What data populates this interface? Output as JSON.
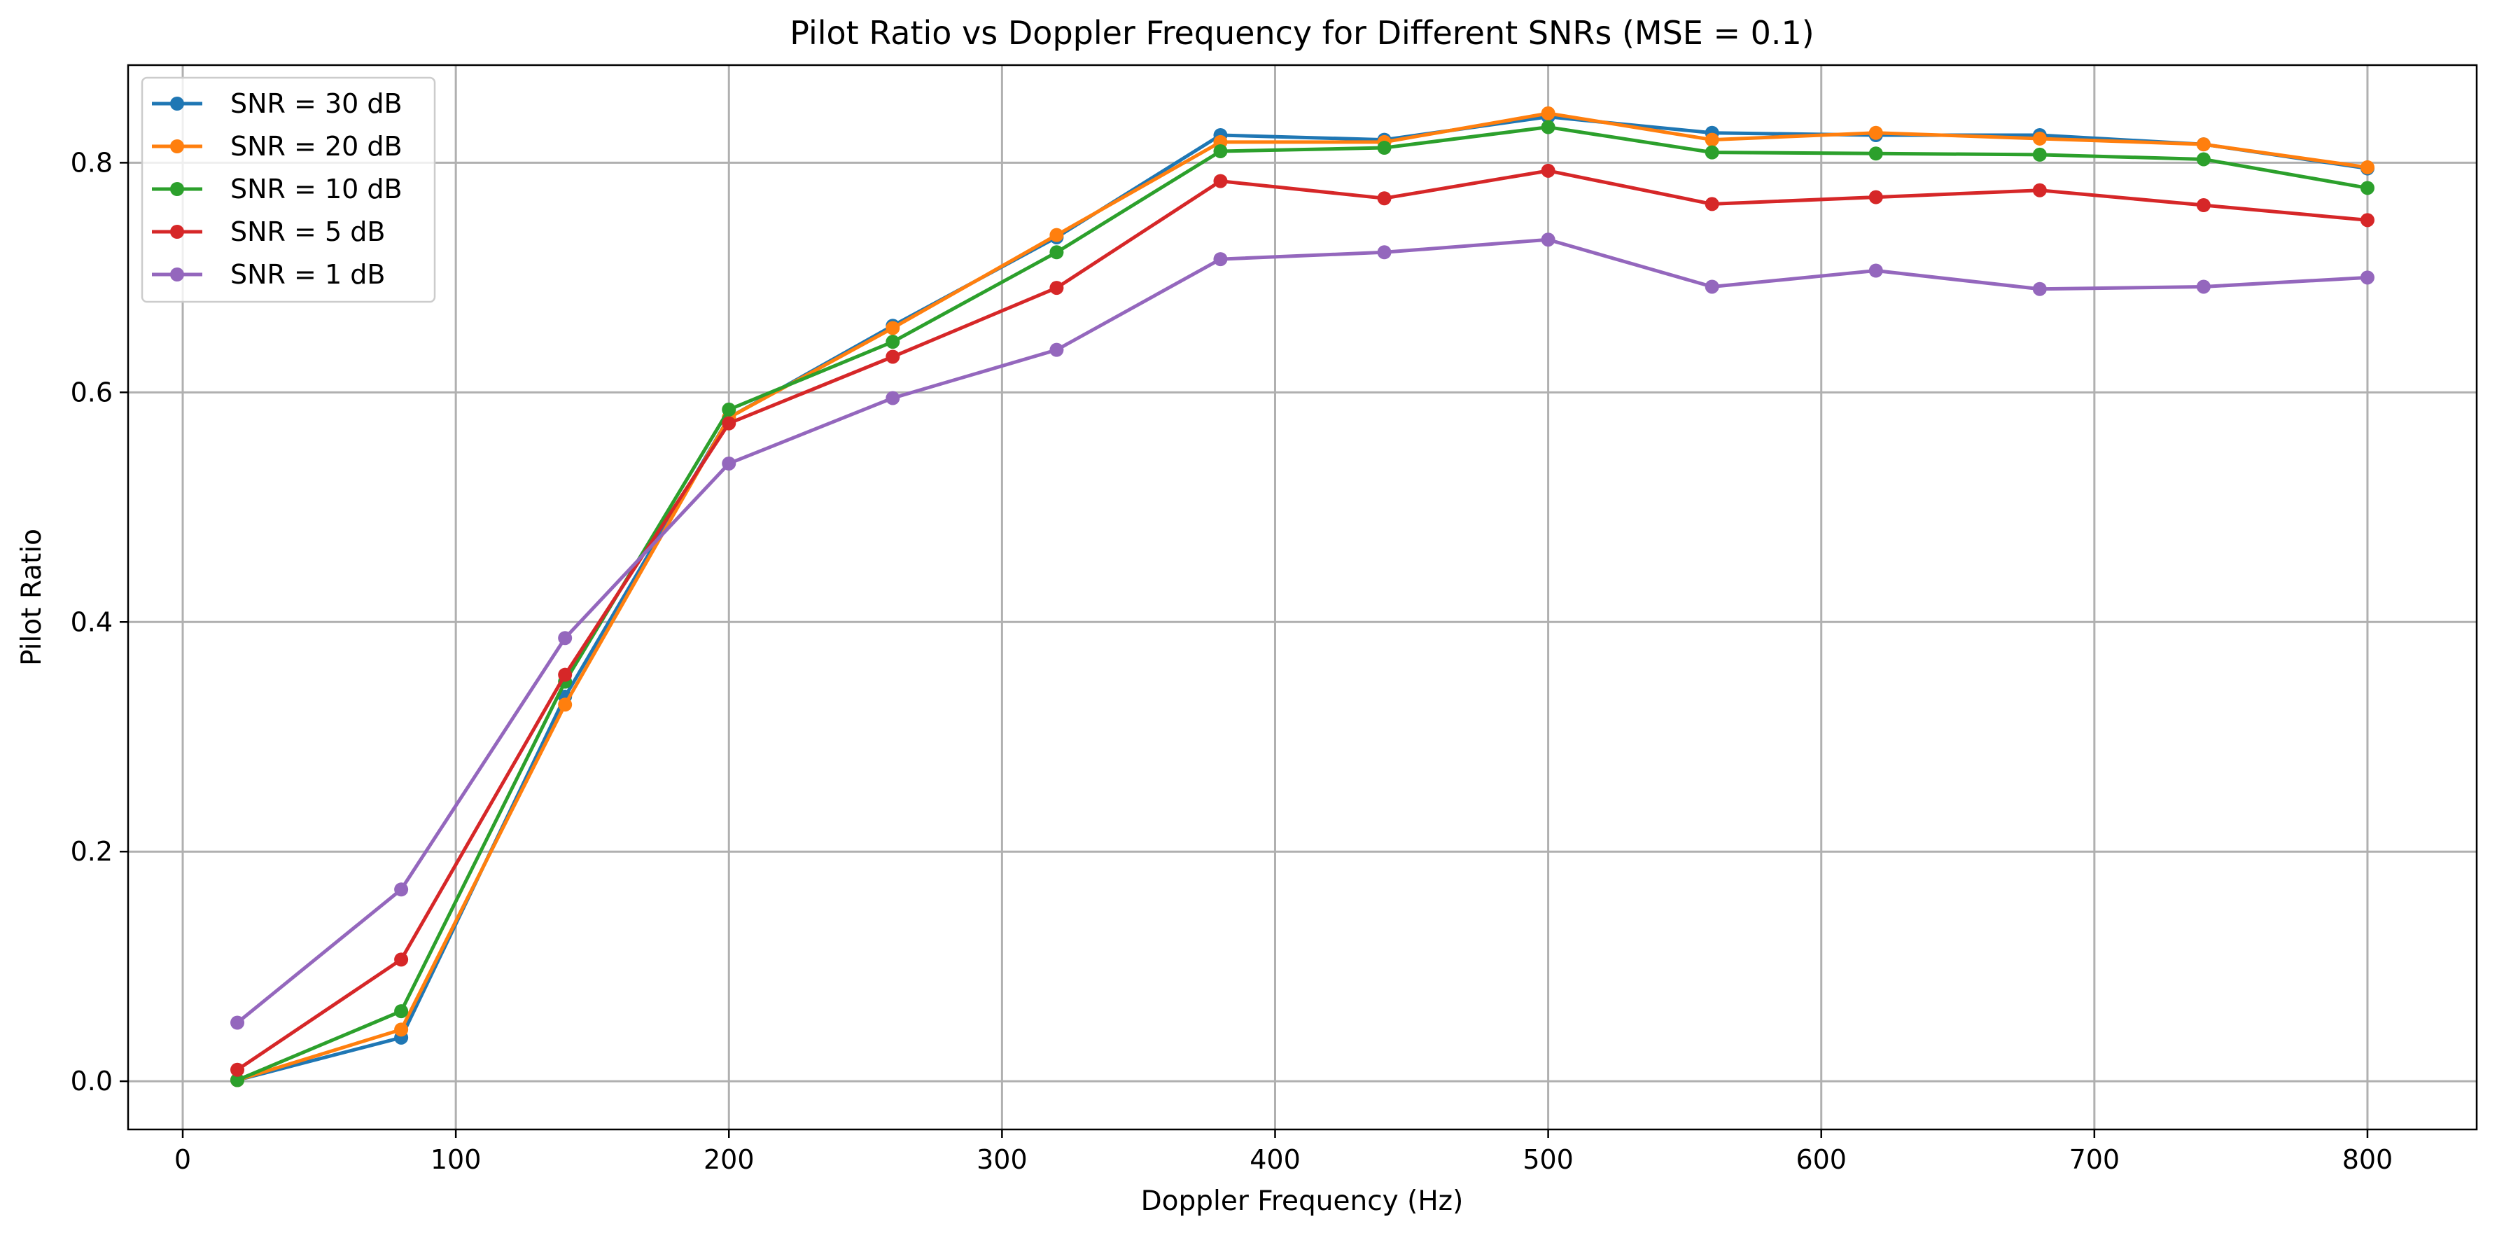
{
  "chart_data": {
    "type": "line",
    "title": "Pilot Ratio vs Doppler Frequency for Different SNRs (MSE = 0.1)",
    "xlabel": "Doppler Frequency (Hz)",
    "ylabel": "Pilot Ratio",
    "xlim": [
      -20,
      840
    ],
    "ylim": [
      -0.042,
      0.885
    ],
    "xticks": [
      0,
      100,
      200,
      300,
      400,
      500,
      600,
      700,
      800
    ],
    "xtick_labels": [
      "0",
      "100",
      "200",
      "300",
      "400",
      "500",
      "600",
      "700",
      "800"
    ],
    "yticks": [
      0.0,
      0.2,
      0.4,
      0.6,
      0.8
    ],
    "ytick_labels": [
      "0.0",
      "0.2",
      "0.4",
      "0.6",
      "0.8"
    ],
    "grid": true,
    "legend_position": "upper-left",
    "x": [
      20,
      80,
      140,
      200,
      260,
      320,
      380,
      440,
      500,
      560,
      620,
      680,
      740,
      800
    ],
    "series": [
      {
        "name": "SNR = 30 dB",
        "color": "#1f77b4",
        "values": [
          0.001,
          0.038,
          0.335,
          0.578,
          0.658,
          0.735,
          0.824,
          0.82,
          0.84,
          0.826,
          0.824,
          0.824,
          0.816,
          0.795
        ]
      },
      {
        "name": "SNR = 20 dB",
        "color": "#ff7f0e",
        "values": [
          0.001,
          0.045,
          0.328,
          0.578,
          0.656,
          0.737,
          0.818,
          0.818,
          0.843,
          0.82,
          0.826,
          0.821,
          0.816,
          0.796
        ]
      },
      {
        "name": "SNR = 10 dB",
        "color": "#2ca02c",
        "values": [
          0.001,
          0.061,
          0.348,
          0.585,
          0.644,
          0.722,
          0.81,
          0.813,
          0.831,
          0.809,
          0.808,
          0.807,
          0.803,
          0.778
        ]
      },
      {
        "name": "SNR = 5 dB",
        "color": "#d62728",
        "values": [
          0.01,
          0.106,
          0.354,
          0.573,
          0.631,
          0.691,
          0.784,
          0.769,
          0.793,
          0.764,
          0.77,
          0.776,
          0.763,
          0.75
        ]
      },
      {
        "name": "SNR = 1 dB",
        "color": "#9467bd",
        "values": [
          0.051,
          0.167,
          0.386,
          0.538,
          0.595,
          0.637,
          0.716,
          0.722,
          0.733,
          0.692,
          0.706,
          0.69,
          0.692,
          0.7
        ]
      }
    ]
  }
}
